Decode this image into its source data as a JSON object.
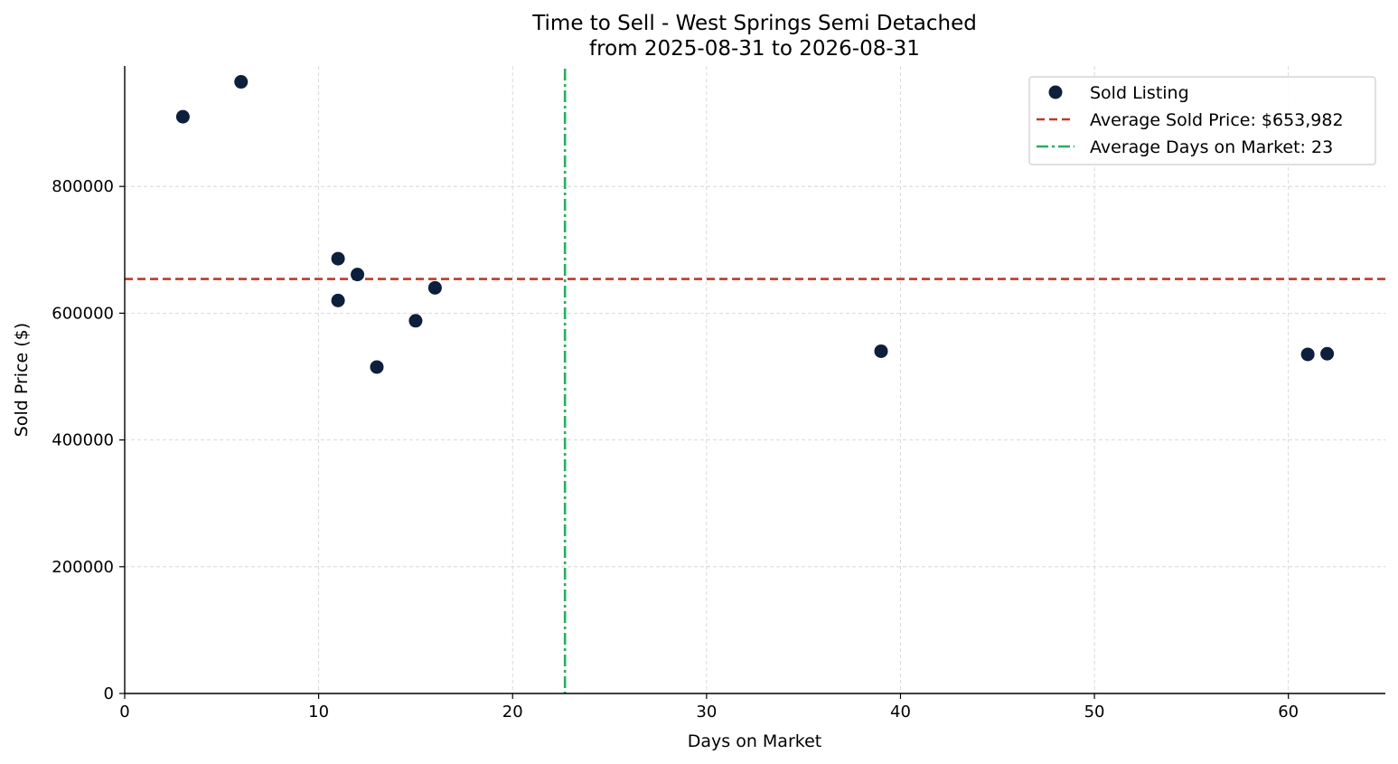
{
  "chart_data": {
    "type": "scatter",
    "title": "Time to Sell - West Springs Semi Detached",
    "subtitle": "from 2025-08-31 to 2026-08-31",
    "xlabel": "Days on Market",
    "ylabel": "Sold Price ($)",
    "xlim": [
      0,
      65
    ],
    "ylim": [
      0,
      990000
    ],
    "x_ticks": [
      0,
      10,
      20,
      30,
      40,
      50,
      60
    ],
    "y_ticks": [
      0,
      200000,
      400000,
      600000,
      800000
    ],
    "grid": true,
    "legend_position": "top-right",
    "series": [
      {
        "name": "Sold Listing",
        "color": "#0d1f3c",
        "points": [
          {
            "x": 3,
            "y": 910000
          },
          {
            "x": 6,
            "y": 965000
          },
          {
            "x": 11,
            "y": 686000
          },
          {
            "x": 11,
            "y": 620000
          },
          {
            "x": 12,
            "y": 661000
          },
          {
            "x": 13,
            "y": 515000
          },
          {
            "x": 15,
            "y": 588000
          },
          {
            "x": 16,
            "y": 640000
          },
          {
            "x": 39,
            "y": 540000
          },
          {
            "x": 61,
            "y": 535000
          },
          {
            "x": 62,
            "y": 536000
          }
        ]
      }
    ],
    "reference_lines": [
      {
        "name": "Average Sold Price: $653,982",
        "orientation": "horizontal",
        "value": 653982,
        "color": "#c0392b",
        "style": "dashed"
      },
      {
        "name": "Average Days on Market: 23",
        "orientation": "vertical",
        "value": 22.7,
        "color": "#27ae60",
        "style": "dashdot"
      }
    ]
  }
}
